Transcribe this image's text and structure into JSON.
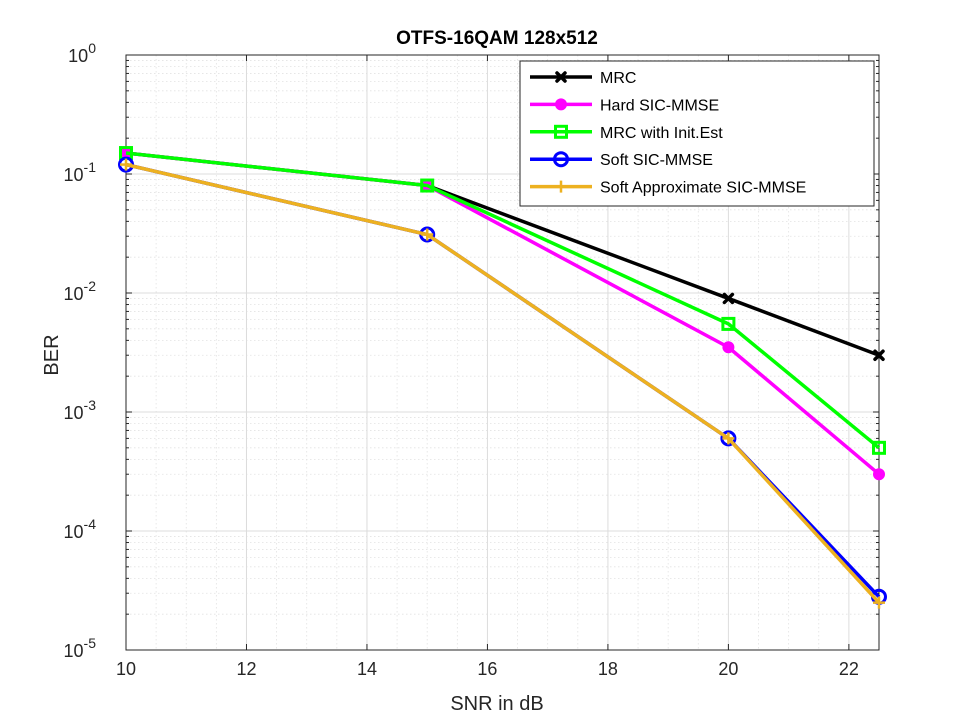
{
  "chart_data": {
    "type": "line",
    "title": "OTFS-16QAM 128x512",
    "xlabel": "SNR in dB",
    "ylabel": "BER",
    "xlim": [
      10,
      22.5
    ],
    "ylim": [
      1e-05,
      1
    ],
    "yscale": "log",
    "grid": true,
    "minor_grid": true,
    "legend_position": "top-right",
    "x_ticks": [
      10,
      12,
      14,
      16,
      18,
      20,
      22
    ],
    "x_tick_labels": [
      "10",
      "12",
      "14",
      "16",
      "18",
      "20",
      "22"
    ],
    "y_tick_exponents": [
      -5,
      -4,
      -3,
      -2,
      -1,
      0
    ],
    "y_tick_base": "10",
    "y_tick_exponent_labels": [
      "-5",
      "-4",
      "-3",
      "-2",
      "-1",
      "0"
    ],
    "series": [
      {
        "name": "MRC",
        "color": "#000000",
        "marker": "x",
        "x": [
          10,
          15,
          20,
          22.5
        ],
        "values": [
          0.15,
          0.08,
          0.009,
          0.003
        ]
      },
      {
        "name": "Hard SIC-MMSE",
        "color": "#ff00ff",
        "marker": "filled-circle",
        "x": [
          10,
          15,
          20,
          22.5
        ],
        "values": [
          0.15,
          0.08,
          0.0035,
          0.0003
        ]
      },
      {
        "name": "MRC with Init.Est",
        "color": "#00ff00",
        "marker": "square",
        "x": [
          10,
          15,
          20,
          22.5
        ],
        "values": [
          0.15,
          0.08,
          0.0055,
          0.0005
        ]
      },
      {
        "name": "Soft SIC-MMSE",
        "color": "#0000ff",
        "marker": "circle",
        "x": [
          10,
          15,
          20,
          22.5
        ],
        "values": [
          0.12,
          0.031,
          0.0006,
          2.8e-05
        ]
      },
      {
        "name": "Soft Approximate SIC-MMSE",
        "color": "#edb120",
        "marker": "plus",
        "x": [
          10,
          15,
          20,
          22.5
        ],
        "values": [
          0.12,
          0.031,
          0.0006,
          2.5e-05
        ]
      }
    ]
  }
}
